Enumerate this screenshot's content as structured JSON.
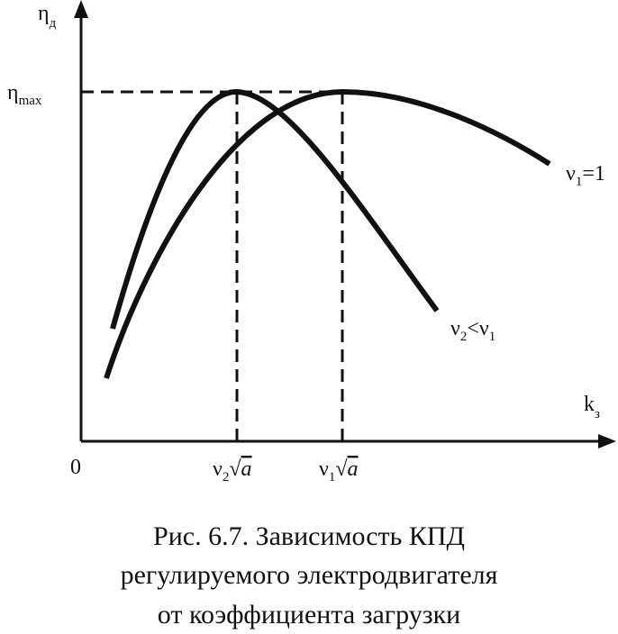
{
  "y_axis_label": {
    "symbol": "η",
    "sub": "д"
  },
  "x_axis_label": {
    "symbol": "k",
    "sub": "з"
  },
  "y_marker_label": {
    "symbol": "η",
    "sub": "max"
  },
  "origin_label": "0",
  "x_marker_labels": [
    {
      "symbol": "ν",
      "sub": "2",
      "radical": "√",
      "radicand": "a"
    },
    {
      "symbol": "ν",
      "sub": "1",
      "radical": "√",
      "radicand": "a"
    }
  ],
  "curve_labels": [
    {
      "symbol": "ν",
      "sub": "1",
      "rest": "=1"
    },
    {
      "symbol": "ν",
      "sub": "2",
      "rest": "<ν",
      "sub2": "1"
    }
  ],
  "caption": [
    "Рис. 6.7. Зависимость КПД",
    "регулируемого электродвигателя",
    "от коэффициента загрузки"
  ]
}
